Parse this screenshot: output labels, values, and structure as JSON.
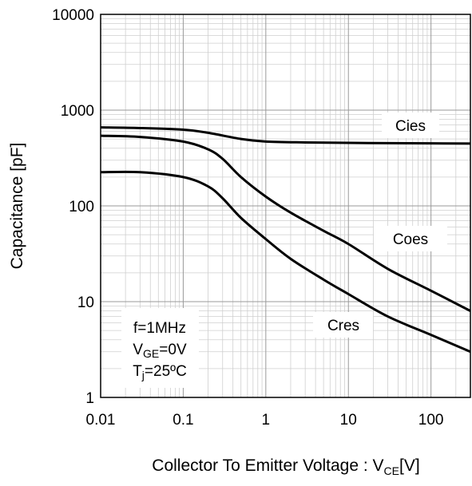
{
  "chart_data": {
    "type": "line",
    "title": "",
    "xlabel": {
      "main": "Collector To Emitter Voltage : V",
      "sub": "CE",
      "unit": "[V]"
    },
    "ylabel": "Capacitance [pF]",
    "xscale": "log",
    "yscale": "log",
    "xlim": [
      0.01,
      300
    ],
    "ylim": [
      1,
      10000
    ],
    "grid": true,
    "x_ticks": [
      {
        "v": 0.01,
        "label": "0.01"
      },
      {
        "v": 0.1,
        "label": "0.1"
      },
      {
        "v": 1,
        "label": "1"
      },
      {
        "v": 10,
        "label": "10"
      },
      {
        "v": 100,
        "label": "100"
      }
    ],
    "y_ticks": [
      {
        "v": 1,
        "label": "1"
      },
      {
        "v": 10,
        "label": "10"
      },
      {
        "v": 100,
        "label": "100"
      },
      {
        "v": 1000,
        "label": "1000"
      },
      {
        "v": 10000,
        "label": "10000"
      }
    ],
    "series": [
      {
        "name": "Cies",
        "label_at": [
          15,
          700
        ],
        "points": [
          [
            0.01,
            660
          ],
          [
            0.03,
            650
          ],
          [
            0.1,
            625
          ],
          [
            0.2,
            580
          ],
          [
            0.5,
            500
          ],
          [
            1,
            470
          ],
          [
            3,
            460
          ],
          [
            10,
            455
          ],
          [
            30,
            452
          ],
          [
            100,
            450
          ],
          [
            300,
            448
          ]
        ]
      },
      {
        "name": "Coes",
        "label_at": [
          14,
          58
        ],
        "points": [
          [
            0.01,
            540
          ],
          [
            0.03,
            525
          ],
          [
            0.1,
            470
          ],
          [
            0.2,
            390
          ],
          [
            0.3,
            310
          ],
          [
            0.5,
            200
          ],
          [
            1,
            125
          ],
          [
            2,
            85
          ],
          [
            5,
            55
          ],
          [
            10,
            40
          ],
          [
            30,
            22
          ],
          [
            100,
            13
          ],
          [
            300,
            8
          ]
        ]
      },
      {
        "name": "Cres",
        "label_at": [
          5.1,
          7.9
        ],
        "points": [
          [
            0.01,
            225
          ],
          [
            0.03,
            225
          ],
          [
            0.1,
            200
          ],
          [
            0.2,
            160
          ],
          [
            0.3,
            120
          ],
          [
            0.5,
            75
          ],
          [
            1,
            45
          ],
          [
            2,
            28
          ],
          [
            5,
            17
          ],
          [
            10,
            12
          ],
          [
            30,
            7
          ],
          [
            100,
            4.5
          ],
          [
            300,
            3
          ]
        ]
      }
    ],
    "conditions": [
      {
        "main": "f=1MHz",
        "sub": "",
        "rest": ""
      },
      {
        "main": "V",
        "sub": "GE",
        "rest": "=0V"
      },
      {
        "main": "T",
        "sub": "j",
        "rest": "=25ºC"
      }
    ]
  }
}
